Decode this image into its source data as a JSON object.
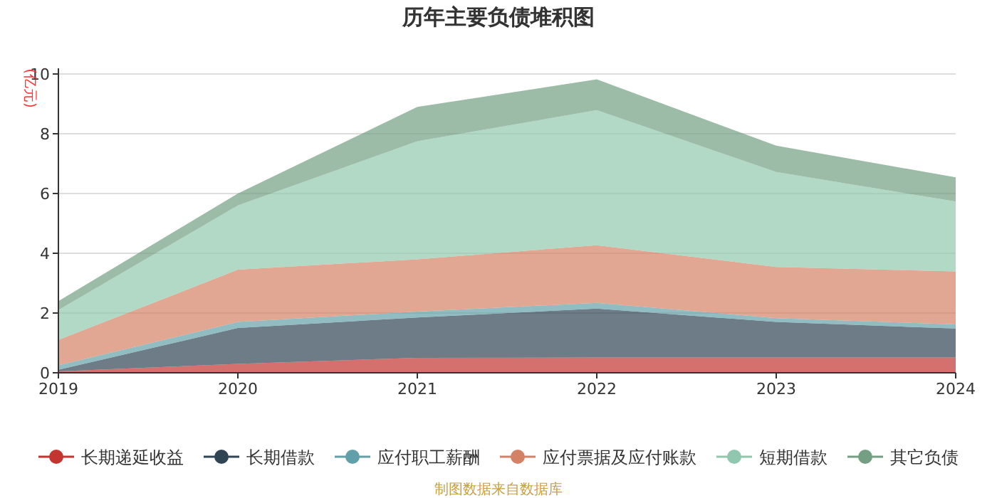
{
  "chart_data": {
    "type": "area",
    "stacked": true,
    "title": "历年主要负债堆积图",
    "ylabel": "(亿元)",
    "x": [
      2019,
      2020,
      2021,
      2022,
      2023,
      2024
    ],
    "xlim": [
      2019,
      2024
    ],
    "xticks": [
      2019,
      2020,
      2021,
      2022,
      2023,
      2024
    ],
    "ylim": [
      0,
      10
    ],
    "yticks": [
      0,
      2,
      4,
      6,
      8,
      10
    ],
    "grid": "y",
    "legend": "bottom",
    "series": [
      {
        "name": "长期递延收益",
        "color": "#c23531",
        "values": [
          0.05,
          0.3,
          0.5,
          0.51,
          0.51,
          0.51
        ]
      },
      {
        "name": "长期借款",
        "color": "#2f4554",
        "values": [
          0.05,
          1.2,
          1.35,
          1.64,
          1.19,
          0.97
        ]
      },
      {
        "name": "应付职工薪酬",
        "color": "#61a0a8",
        "values": [
          0.15,
          0.2,
          0.2,
          0.19,
          0.13,
          0.14
        ]
      },
      {
        "name": "应付票据及应付账款",
        "color": "#d48265",
        "values": [
          0.85,
          1.75,
          1.75,
          1.93,
          1.71,
          1.77
        ]
      },
      {
        "name": "短期借款",
        "color": "#91c7ae",
        "values": [
          1.0,
          2.15,
          3.95,
          4.52,
          3.18,
          2.34
        ]
      },
      {
        "name": "其它负债",
        "color": "#749f83",
        "values": [
          0.3,
          0.4,
          1.15,
          1.03,
          0.88,
          0.81
        ]
      }
    ],
    "annotations": [
      "制图数据来自数据库"
    ]
  }
}
